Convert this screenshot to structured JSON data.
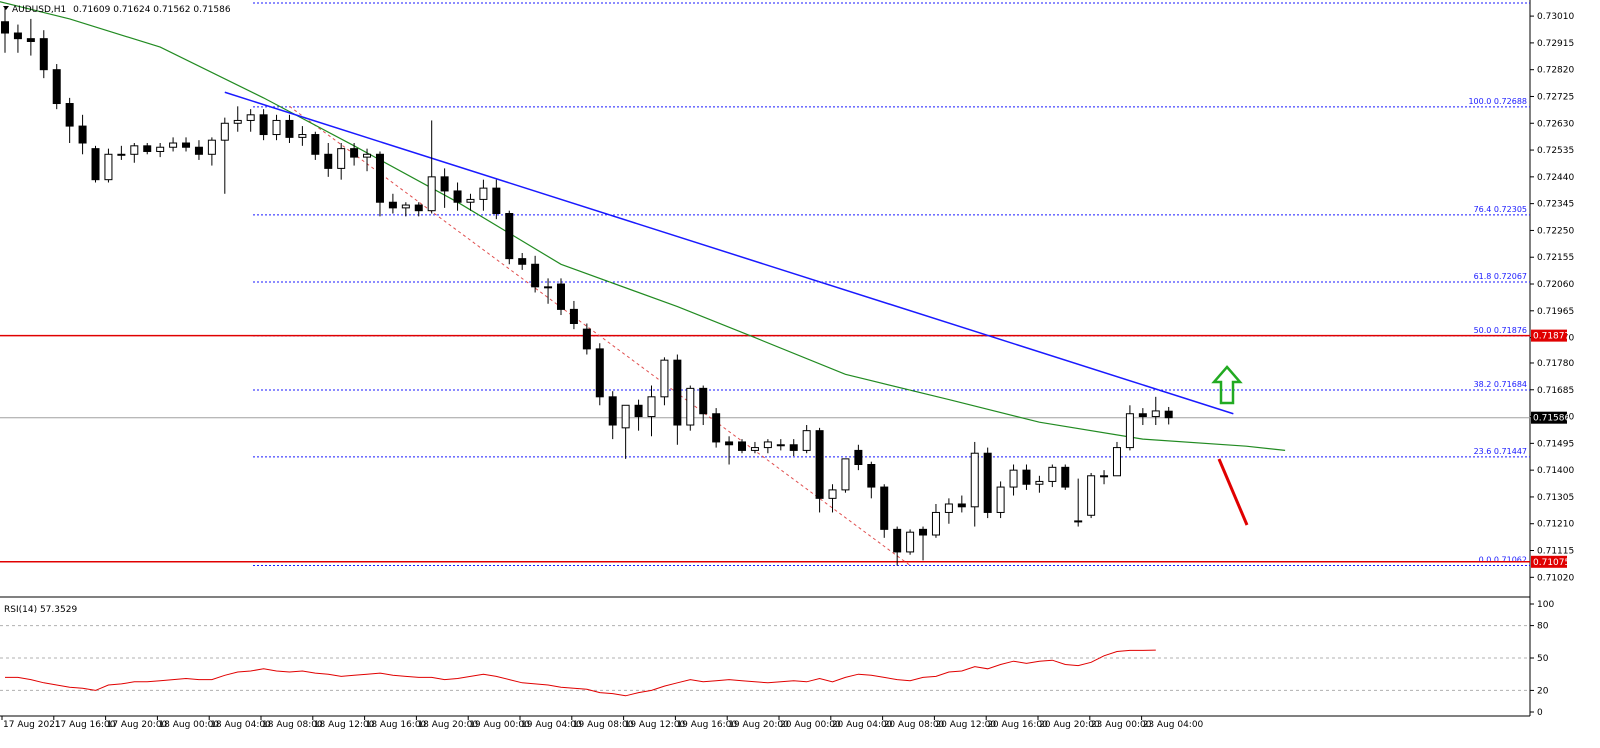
{
  "chart_data": {
    "type": "candlestick",
    "symbol_header": "AUDUSD,H1",
    "ohlc_header": "0.71609 0.71624 0.71562 0.71586",
    "current_price_tag": "0.71586",
    "y_range": [
      0.70975,
      0.7306
    ],
    "price_ticks": [
      "0.73010",
      "0.72915",
      "0.72820",
      "0.72725",
      "0.72630",
      "0.72535",
      "0.72440",
      "0.72345",
      "0.72250",
      "0.72155",
      "0.72060",
      "0.71965",
      "0.71870",
      "0.71780",
      "0.71685",
      "0.71590",
      "0.71495",
      "0.71400",
      "0.71305",
      "0.71210",
      "0.71115",
      "0.71020"
    ],
    "time_labels": [
      "17 Aug 2021",
      "17 Aug 16:00",
      "17 Aug 20:00",
      "18 Aug 00:00",
      "18 Aug 04:00",
      "18 Aug 08:00",
      "18 Aug 12:00",
      "18 Aug 16:00",
      "18 Aug 20:00",
      "19 Aug 00:00",
      "19 Aug 04:00",
      "19 Aug 08:00",
      "19 Aug 12:00",
      "19 Aug 16:00",
      "19 Aug 20:00",
      "20 Aug 00:00",
      "20 Aug 04:00",
      "20 Aug 08:00",
      "20 Aug 12:00",
      "20 Aug 16:00",
      "20 Aug 20:00",
      "23 Aug 00:00",
      "23 Aug 04:00"
    ],
    "fibonacci": [
      {
        "label": "100.0 0.72688",
        "price": 0.72688
      },
      {
        "label": "76.4 0.72305",
        "price": 0.72305
      },
      {
        "label": "61.8 0.72067",
        "price": 0.72067
      },
      {
        "label": "50.0 0.71876",
        "price": 0.71876
      },
      {
        "label": "38.2 0.71684",
        "price": 0.71684
      },
      {
        "label": "23.6 0.71447",
        "price": 0.71447
      },
      {
        "label": "0.0 0.71062",
        "price": 0.71062
      }
    ],
    "horizontal_levels": [
      {
        "label": "0.71877",
        "price": 0.71877,
        "color": "#e00000"
      },
      {
        "label": "0.71075",
        "price": 0.71075,
        "color": "#e00000"
      }
    ],
    "top_dotted_level": 0.7306,
    "candles": [
      {
        "o": 0.7299,
        "h": 0.7304,
        "l": 0.7288,
        "c": 0.7295
      },
      {
        "o": 0.7295,
        "h": 0.7298,
        "l": 0.7288,
        "c": 0.7293
      },
      {
        "o": 0.7293,
        "h": 0.73,
        "l": 0.7287,
        "c": 0.7292
      },
      {
        "o": 0.7293,
        "h": 0.7296,
        "l": 0.7279,
        "c": 0.7282
      },
      {
        "o": 0.7282,
        "h": 0.7284,
        "l": 0.7268,
        "c": 0.727
      },
      {
        "o": 0.727,
        "h": 0.7272,
        "l": 0.7256,
        "c": 0.7262
      },
      {
        "o": 0.7262,
        "h": 0.7266,
        "l": 0.7252,
        "c": 0.7256
      },
      {
        "o": 0.7254,
        "h": 0.7255,
        "l": 0.7242,
        "c": 0.7243
      },
      {
        "o": 0.7243,
        "h": 0.7254,
        "l": 0.7242,
        "c": 0.7252
      },
      {
        "o": 0.7252,
        "h": 0.7255,
        "l": 0.725,
        "c": 0.7252
      },
      {
        "o": 0.7252,
        "h": 0.7256,
        "l": 0.7249,
        "c": 0.7255
      },
      {
        "o": 0.7255,
        "h": 0.7256,
        "l": 0.7252,
        "c": 0.7253
      },
      {
        "o": 0.7253,
        "h": 0.7256,
        "l": 0.7251,
        "c": 0.72545
      },
      {
        "o": 0.72545,
        "h": 0.7258,
        "l": 0.7253,
        "c": 0.7256
      },
      {
        "o": 0.7256,
        "h": 0.7258,
        "l": 0.7253,
        "c": 0.72545
      },
      {
        "o": 0.72545,
        "h": 0.7257,
        "l": 0.725,
        "c": 0.7252
      },
      {
        "o": 0.7252,
        "h": 0.7258,
        "l": 0.7248,
        "c": 0.7257
      },
      {
        "o": 0.7257,
        "h": 0.7265,
        "l": 0.7238,
        "c": 0.7263
      },
      {
        "o": 0.7263,
        "h": 0.7269,
        "l": 0.726,
        "c": 0.7264
      },
      {
        "o": 0.7264,
        "h": 0.7268,
        "l": 0.726,
        "c": 0.7266
      },
      {
        "o": 0.7266,
        "h": 0.7268,
        "l": 0.7257,
        "c": 0.7259
      },
      {
        "o": 0.7259,
        "h": 0.7266,
        "l": 0.7257,
        "c": 0.7264
      },
      {
        "o": 0.7264,
        "h": 0.7266,
        "l": 0.7256,
        "c": 0.7258
      },
      {
        "o": 0.7258,
        "h": 0.7262,
        "l": 0.7255,
        "c": 0.7259
      },
      {
        "o": 0.7259,
        "h": 0.726,
        "l": 0.725,
        "c": 0.7252
      },
      {
        "o": 0.7252,
        "h": 0.7256,
        "l": 0.7244,
        "c": 0.7247
      },
      {
        "o": 0.7247,
        "h": 0.7256,
        "l": 0.7243,
        "c": 0.7254
      },
      {
        "o": 0.7254,
        "h": 0.7256,
        "l": 0.7248,
        "c": 0.7251
      },
      {
        "o": 0.7251,
        "h": 0.7254,
        "l": 0.7246,
        "c": 0.7252
      },
      {
        "o": 0.7252,
        "h": 0.7253,
        "l": 0.723,
        "c": 0.7235
      },
      {
        "o": 0.7235,
        "h": 0.7238,
        "l": 0.7231,
        "c": 0.7233
      },
      {
        "o": 0.7233,
        "h": 0.7235,
        "l": 0.723,
        "c": 0.7234
      },
      {
        "o": 0.7234,
        "h": 0.7235,
        "l": 0.723,
        "c": 0.7232
      },
      {
        "o": 0.7232,
        "h": 0.7264,
        "l": 0.7231,
        "c": 0.7244
      },
      {
        "o": 0.7244,
        "h": 0.7247,
        "l": 0.7233,
        "c": 0.7239
      },
      {
        "o": 0.7239,
        "h": 0.7242,
        "l": 0.7232,
        "c": 0.7235
      },
      {
        "o": 0.7235,
        "h": 0.7238,
        "l": 0.7232,
        "c": 0.7236
      },
      {
        "o": 0.7236,
        "h": 0.7243,
        "l": 0.7232,
        "c": 0.724
      },
      {
        "o": 0.724,
        "h": 0.7243,
        "l": 0.7229,
        "c": 0.7231
      },
      {
        "o": 0.7231,
        "h": 0.7232,
        "l": 0.7213,
        "c": 0.7215
      },
      {
        "o": 0.7215,
        "h": 0.7217,
        "l": 0.7211,
        "c": 0.7213
      },
      {
        "o": 0.7213,
        "h": 0.7216,
        "l": 0.7203,
        "c": 0.7205
      },
      {
        "o": 0.7205,
        "h": 0.7208,
        "l": 0.7199,
        "c": 0.7205
      },
      {
        "o": 0.7206,
        "h": 0.7208,
        "l": 0.7195,
        "c": 0.7197
      },
      {
        "o": 0.7197,
        "h": 0.72,
        "l": 0.719,
        "c": 0.7192
      },
      {
        "o": 0.719,
        "h": 0.7192,
        "l": 0.7181,
        "c": 0.7183
      },
      {
        "o": 0.7183,
        "h": 0.7185,
        "l": 0.7163,
        "c": 0.7166
      },
      {
        "o": 0.7166,
        "h": 0.7168,
        "l": 0.7151,
        "c": 0.7156
      },
      {
        "o": 0.7155,
        "h": 0.7163,
        "l": 0.7144,
        "c": 0.7163
      },
      {
        "o": 0.7163,
        "h": 0.7165,
        "l": 0.7154,
        "c": 0.7159
      },
      {
        "o": 0.7159,
        "h": 0.717,
        "l": 0.7152,
        "c": 0.7166
      },
      {
        "o": 0.7166,
        "h": 0.718,
        "l": 0.7163,
        "c": 0.7179
      },
      {
        "o": 0.7179,
        "h": 0.7181,
        "l": 0.7149,
        "c": 0.7156
      },
      {
        "o": 0.7156,
        "h": 0.717,
        "l": 0.7154,
        "c": 0.7169
      },
      {
        "o": 0.7169,
        "h": 0.717,
        "l": 0.7156,
        "c": 0.716
      },
      {
        "o": 0.716,
        "h": 0.7162,
        "l": 0.7148,
        "c": 0.715
      },
      {
        "o": 0.715,
        "h": 0.7152,
        "l": 0.7142,
        "c": 0.7149
      },
      {
        "o": 0.715,
        "h": 0.7151,
        "l": 0.7146,
        "c": 0.7147
      },
      {
        "o": 0.7147,
        "h": 0.715,
        "l": 0.7146,
        "c": 0.7148
      },
      {
        "o": 0.7148,
        "h": 0.7151,
        "l": 0.7146,
        "c": 0.715
      },
      {
        "o": 0.7149,
        "h": 0.7151,
        "l": 0.7147,
        "c": 0.7149
      },
      {
        "o": 0.7149,
        "h": 0.7151,
        "l": 0.7145,
        "c": 0.7147
      },
      {
        "o": 0.7147,
        "h": 0.7156,
        "l": 0.7146,
        "c": 0.7154
      },
      {
        "o": 0.7154,
        "h": 0.7155,
        "l": 0.7125,
        "c": 0.713
      },
      {
        "o": 0.713,
        "h": 0.7135,
        "l": 0.7125,
        "c": 0.7133
      },
      {
        "o": 0.7133,
        "h": 0.7144,
        "l": 0.7132,
        "c": 0.7144
      },
      {
        "o": 0.7147,
        "h": 0.7149,
        "l": 0.714,
        "c": 0.7142
      },
      {
        "o": 0.7142,
        "h": 0.7143,
        "l": 0.713,
        "c": 0.7134
      },
      {
        "o": 0.7134,
        "h": 0.7135,
        "l": 0.7116,
        "c": 0.7119
      },
      {
        "o": 0.7119,
        "h": 0.712,
        "l": 0.71062,
        "c": 0.7111
      },
      {
        "o": 0.7111,
        "h": 0.7119,
        "l": 0.711,
        "c": 0.7118
      },
      {
        "o": 0.7119,
        "h": 0.712,
        "l": 0.7108,
        "c": 0.7117
      },
      {
        "o": 0.7117,
        "h": 0.7128,
        "l": 0.7116,
        "c": 0.7125
      },
      {
        "o": 0.7125,
        "h": 0.713,
        "l": 0.7121,
        "c": 0.7128
      },
      {
        "o": 0.7128,
        "h": 0.7131,
        "l": 0.7125,
        "c": 0.7127
      },
      {
        "o": 0.7127,
        "h": 0.715,
        "l": 0.712,
        "c": 0.7146
      },
      {
        "o": 0.7146,
        "h": 0.7148,
        "l": 0.7123,
        "c": 0.7125
      },
      {
        "o": 0.7125,
        "h": 0.7136,
        "l": 0.7123,
        "c": 0.7134
      },
      {
        "o": 0.7134,
        "h": 0.7142,
        "l": 0.7131,
        "c": 0.714
      },
      {
        "o": 0.714,
        "h": 0.7142,
        "l": 0.7133,
        "c": 0.7135
      },
      {
        "o": 0.7135,
        "h": 0.7138,
        "l": 0.7132,
        "c": 0.7136
      },
      {
        "o": 0.7136,
        "h": 0.7142,
        "l": 0.7134,
        "c": 0.7141
      },
      {
        "o": 0.7141,
        "h": 0.7142,
        "l": 0.7133,
        "c": 0.7134
      },
      {
        "o": 0.7122,
        "h": 0.7137,
        "l": 0.712,
        "c": 0.7122
      },
      {
        "o": 0.7124,
        "h": 0.7139,
        "l": 0.7123,
        "c": 0.7138
      },
      {
        "o": 0.7138,
        "h": 0.714,
        "l": 0.7135,
        "c": 0.7138
      },
      {
        "o": 0.7138,
        "h": 0.715,
        "l": 0.7138,
        "c": 0.7148
      },
      {
        "o": 0.7148,
        "h": 0.7163,
        "l": 0.7147,
        "c": 0.716
      },
      {
        "o": 0.716,
        "h": 0.7162,
        "l": 0.7156,
        "c": 0.7159
      },
      {
        "o": 0.7159,
        "h": 0.7166,
        "l": 0.7156,
        "c": 0.7161
      },
      {
        "o": 0.71609,
        "h": 0.71624,
        "l": 0.71562,
        "c": 0.71586
      }
    ],
    "ma_points": [
      [
        -3,
        0.7309
      ],
      [
        5,
        0.73
      ],
      [
        12,
        0.729
      ],
      [
        20,
        0.7272
      ],
      [
        27,
        0.7255
      ],
      [
        35,
        0.7235
      ],
      [
        43,
        0.7213
      ],
      [
        52,
        0.7198
      ],
      [
        58,
        0.7187
      ],
      [
        65,
        0.7174
      ],
      [
        73,
        0.7165
      ],
      [
        80,
        0.7157
      ],
      [
        88,
        0.7151
      ],
      [
        96,
        0.71485
      ],
      [
        99,
        0.7147
      ]
    ],
    "trendline": {
      "start": [
        17,
        0.7274
      ],
      "end": [
        95,
        0.716
      ]
    },
    "fib_diagonal": {
      "start": [
        22,
        0.7269
      ],
      "end": [
        70,
        0.71062
      ]
    },
    "rsi": {
      "label": "RSI(14) 57.3529",
      "period": 14,
      "last": 57.3529,
      "y_ticks": [
        "100",
        "80",
        "50",
        "20",
        "0"
      ],
      "levels": [
        80,
        50,
        20
      ],
      "values": [
        32,
        32,
        30,
        27,
        25,
        23,
        22,
        20,
        25,
        26,
        28,
        28,
        29,
        30,
        31,
        30,
        30,
        34,
        37,
        38,
        40,
        38,
        37,
        38,
        36,
        35,
        33,
        34,
        35,
        36,
        34,
        33,
        32,
        32,
        30,
        31,
        33,
        35,
        33,
        30,
        27,
        26,
        25,
        23,
        22,
        21,
        18,
        17,
        15,
        18,
        20,
        24,
        27,
        30,
        28,
        29,
        30,
        29,
        28,
        27,
        28,
        29,
        28,
        31,
        28,
        32,
        35,
        34,
        32,
        30,
        29,
        32,
        33,
        37,
        38,
        42,
        40,
        44,
        47,
        45,
        47,
        48,
        44,
        43,
        46,
        52,
        56,
        57,
        57,
        57.35
      ]
    },
    "annotations": [
      {
        "type": "arrow",
        "direction": "up",
        "color": "#22aa22"
      },
      {
        "type": "line",
        "direction": "down",
        "color": "#e00000"
      }
    ]
  }
}
